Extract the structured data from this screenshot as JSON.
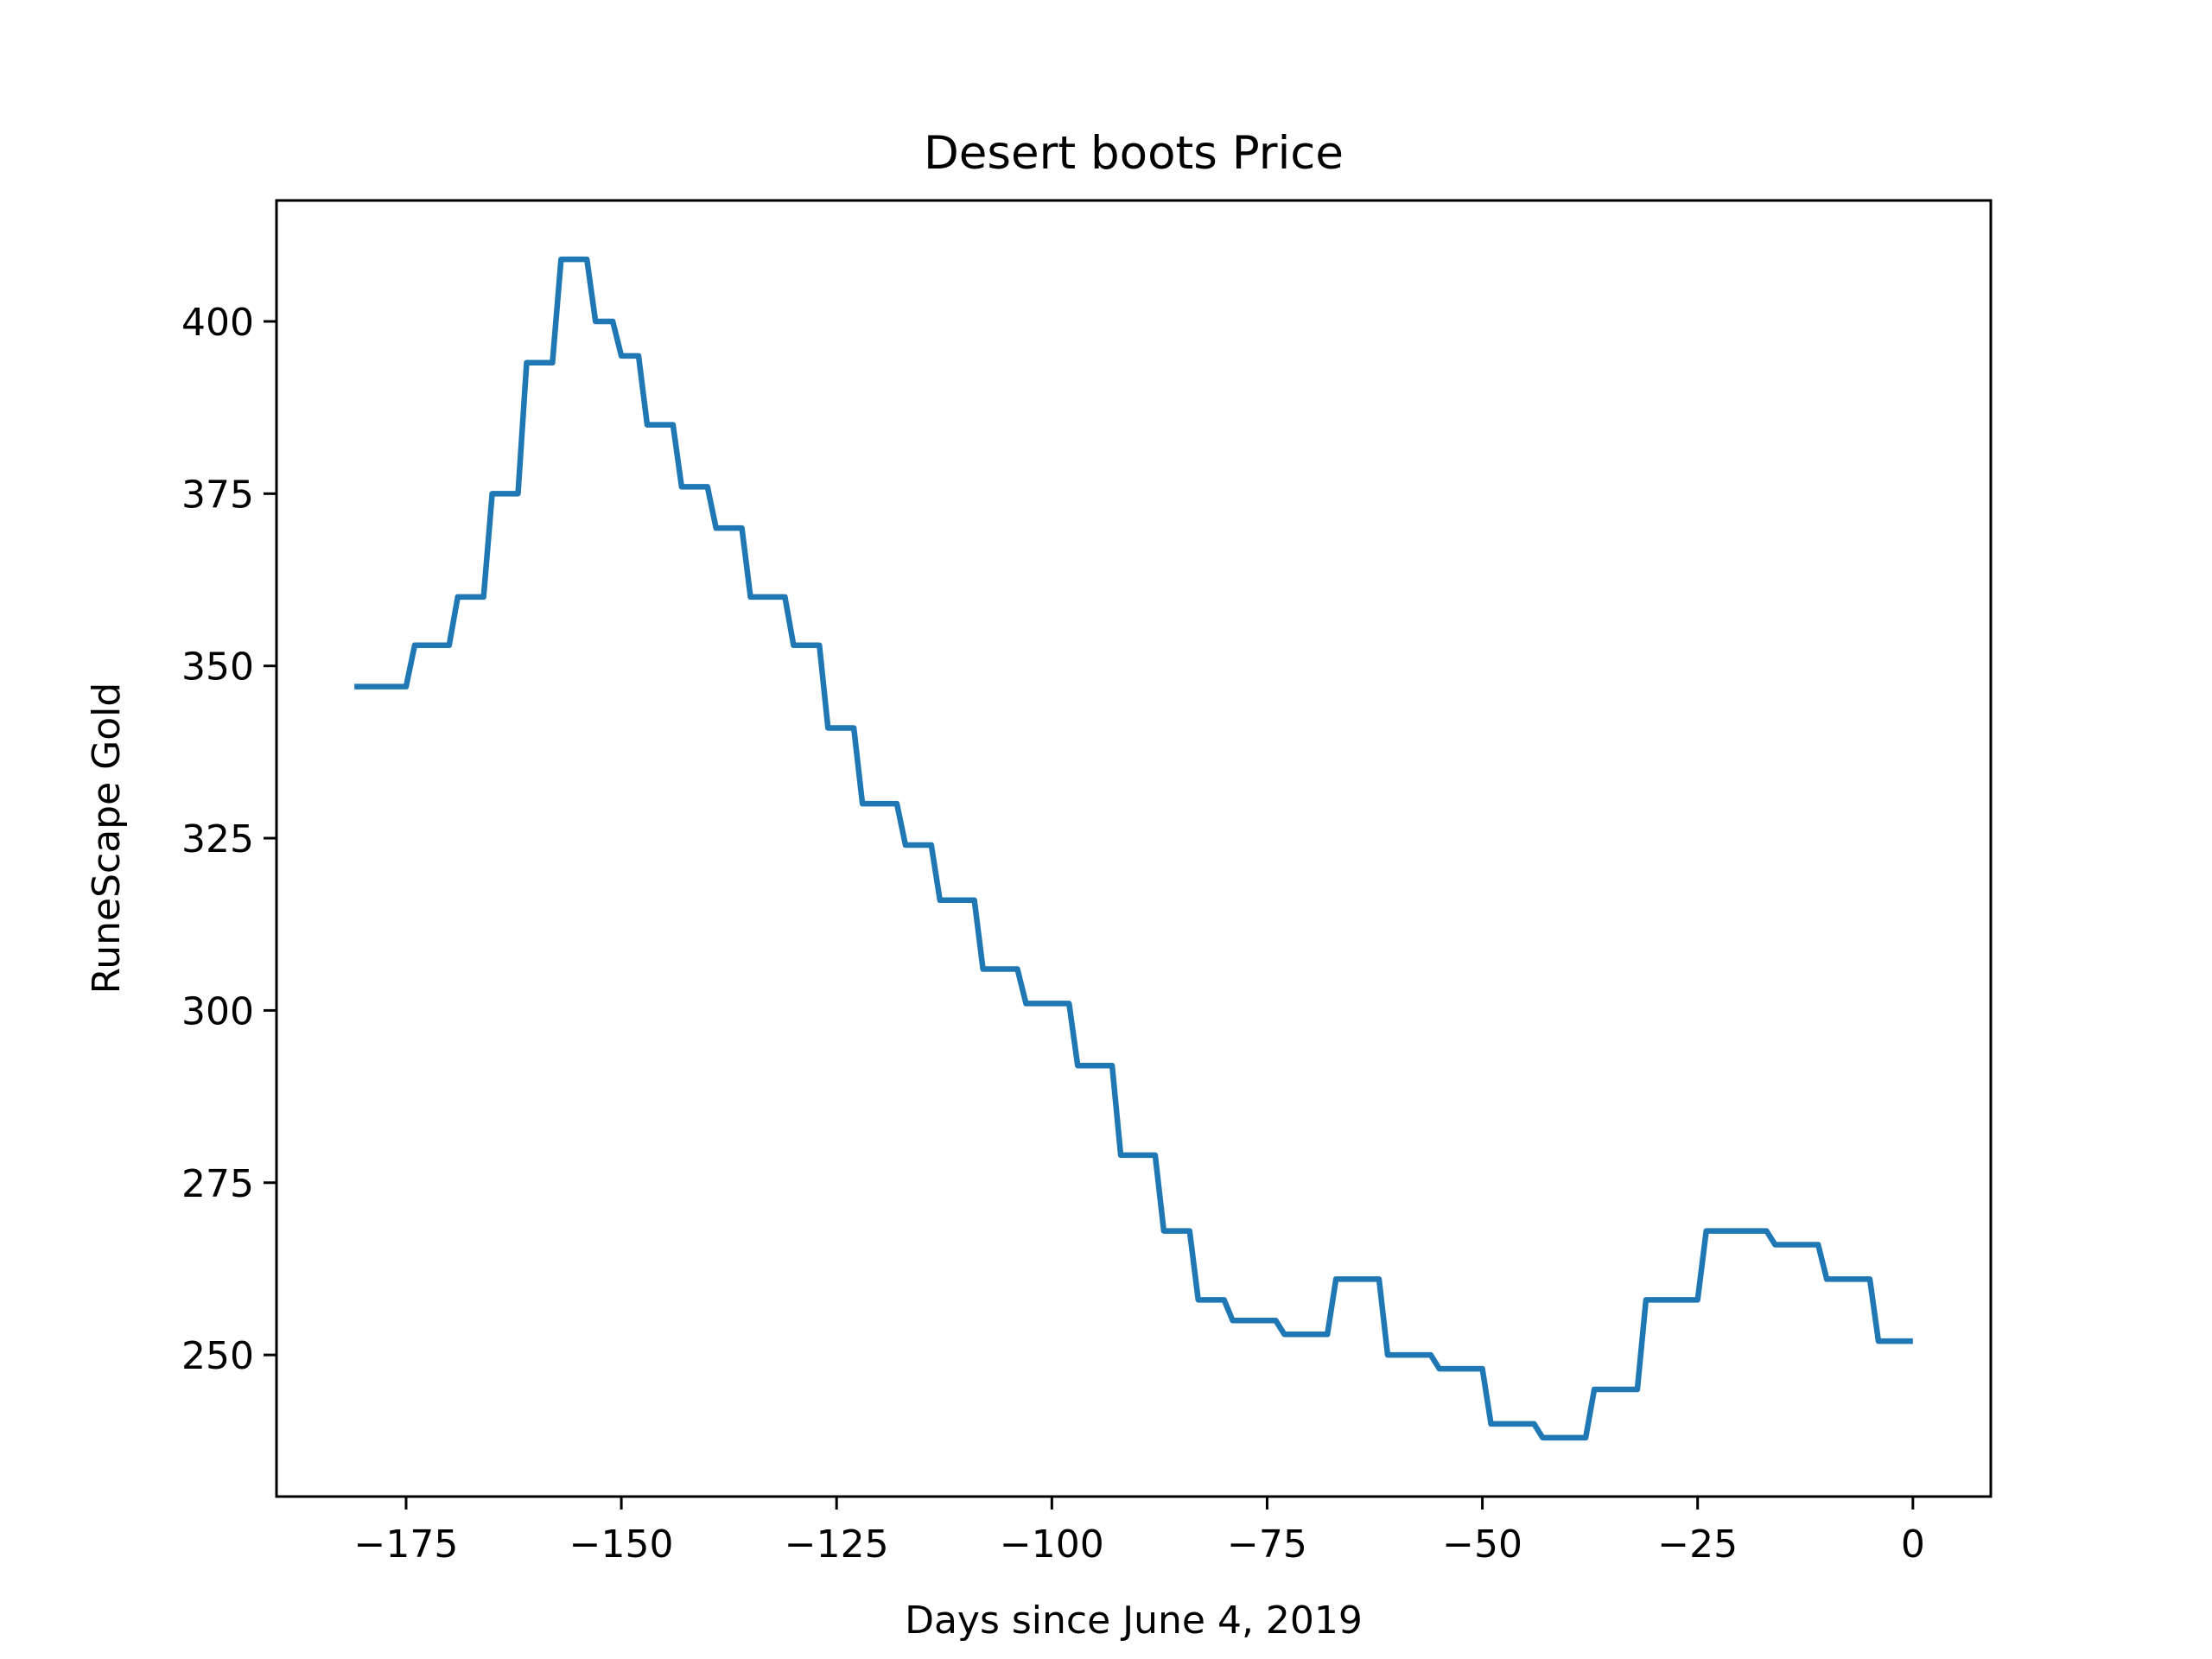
{
  "chart_data": {
    "type": "line",
    "title": "Desert boots Price",
    "x_label": "Days since June 4, 2019",
    "y_label": "RuneScape Gold",
    "x": [
      -181,
      -175,
      -174,
      -170,
      -169,
      -166,
      -165,
      -162,
      -161,
      -158,
      -157,
      -154,
      -153,
      -151,
      -150,
      -148,
      -147,
      -144,
      -143,
      -140,
      -139,
      -136,
      -135,
      -131,
      -130,
      -127,
      -126,
      -123,
      -122,
      -118,
      -117,
      -114,
      -113,
      -109,
      -108,
      -104,
      -103,
      -98,
      -97,
      -93,
      -92,
      -88,
      -87,
      -84,
      -83,
      -80,
      -79,
      -74,
      -73,
      -68,
      -67,
      -62,
      -61,
      -56,
      -55,
      -50,
      -49,
      -44,
      -43,
      -38,
      -37,
      -32,
      -31,
      -25,
      -24,
      -17,
      -16,
      -11,
      -10,
      -5,
      -4,
      0
    ],
    "series": [
      {
        "name": "Desert boots",
        "color": "#1f77b4",
        "values": [
          347,
          347,
          353,
          353,
          360,
          360,
          375,
          375,
          394,
          394,
          409,
          409,
          400,
          400,
          395,
          395,
          385,
          385,
          376,
          376,
          370,
          370,
          360,
          360,
          353,
          353,
          341,
          341,
          330,
          330,
          324,
          324,
          316,
          316,
          306,
          306,
          301,
          301,
          292,
          292,
          279,
          279,
          268,
          268,
          258,
          258,
          255,
          255,
          253,
          253,
          261,
          261,
          250,
          250,
          248,
          248,
          240,
          240,
          238,
          238,
          245,
          245,
          258,
          258,
          268,
          268,
          266,
          266,
          261,
          261,
          252,
          252
        ]
      }
    ],
    "xlim": [
      -190.05,
      9.05
    ],
    "ylim": [
      229.45,
      417.55
    ],
    "xticks": [
      {
        "value": -175,
        "label": "−175"
      },
      {
        "value": -150,
        "label": "−150"
      },
      {
        "value": -125,
        "label": "−125"
      },
      {
        "value": -100,
        "label": "−100"
      },
      {
        "value": -75,
        "label": "−75"
      },
      {
        "value": -50,
        "label": "−50"
      },
      {
        "value": -25,
        "label": "−25"
      },
      0
    ],
    "yticks": [
      250,
      275,
      300,
      325,
      350,
      375,
      400
    ],
    "grid": false
  }
}
